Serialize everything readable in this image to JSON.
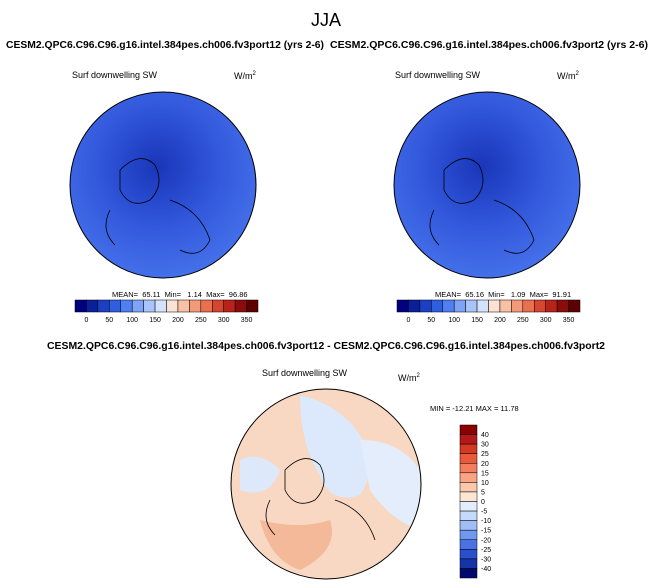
{
  "title": "JJA",
  "panels": [
    {
      "title": "CESM2.QPC6.C96.C96.g16.intel.384pes.ch006.fv3port12 (yrs 2-6)",
      "variable": "Surf downwelling SW",
      "units": "W/m",
      "units_power": "2",
      "stats": "MEAN=  65.11  Min=   1.14  Max=  96.86"
    },
    {
      "title": "CESM2.QPC6.C96.C96.g16.intel.384pes.ch006.fv3port2 (yrs 2-6)",
      "variable": "Surf downwelling SW",
      "units": "W/m",
      "units_power": "2",
      "stats": "MEAN=  65.16  Min=   1.09  Max=  91.91"
    }
  ],
  "colorbar": {
    "labels": [
      0,
      50,
      100,
      150,
      200,
      250,
      300,
      350
    ],
    "colors": [
      "#00007f",
      "#0a1f9a",
      "#1c3fc4",
      "#2f5fe0",
      "#4f7ff0",
      "#7ea3f7",
      "#a9c4fb",
      "#d4e2fd",
      "#fbe2d2",
      "#f8c1a4",
      "#f39b79",
      "#e9704f",
      "#d64530",
      "#b82218",
      "#8c0c0c",
      "#5e0000"
    ]
  },
  "difference": {
    "title": "CESM2.QPC6.C96.C96.g16.intel.384pes.ch006.fv3port12 - CESM2.QPC6.C96.C96.g16.intel.384pes.ch006.fv3port2",
    "variable": "Surf downwelling SW",
    "units": "W/m",
    "units_power": "2",
    "stats": "MIN = -12.21 MAX = 11.78",
    "colorbar": {
      "labels": [
        40,
        30,
        25,
        20,
        15,
        10,
        5,
        0,
        -5,
        -10,
        -15,
        -20,
        -25,
        -30,
        -40
      ],
      "colors": [
        "#8b0000",
        "#b4181a",
        "#d43a22",
        "#ea5a3a",
        "#f47f5e",
        "#f9a584",
        "#fbc8ac",
        "#fde5d3",
        "#e3edfc",
        "#c4d9fb",
        "#9fbdf6",
        "#7198ef",
        "#4a72e2",
        "#2a4fcc",
        "#1633a8",
        "#000a6e"
      ]
    }
  }
}
